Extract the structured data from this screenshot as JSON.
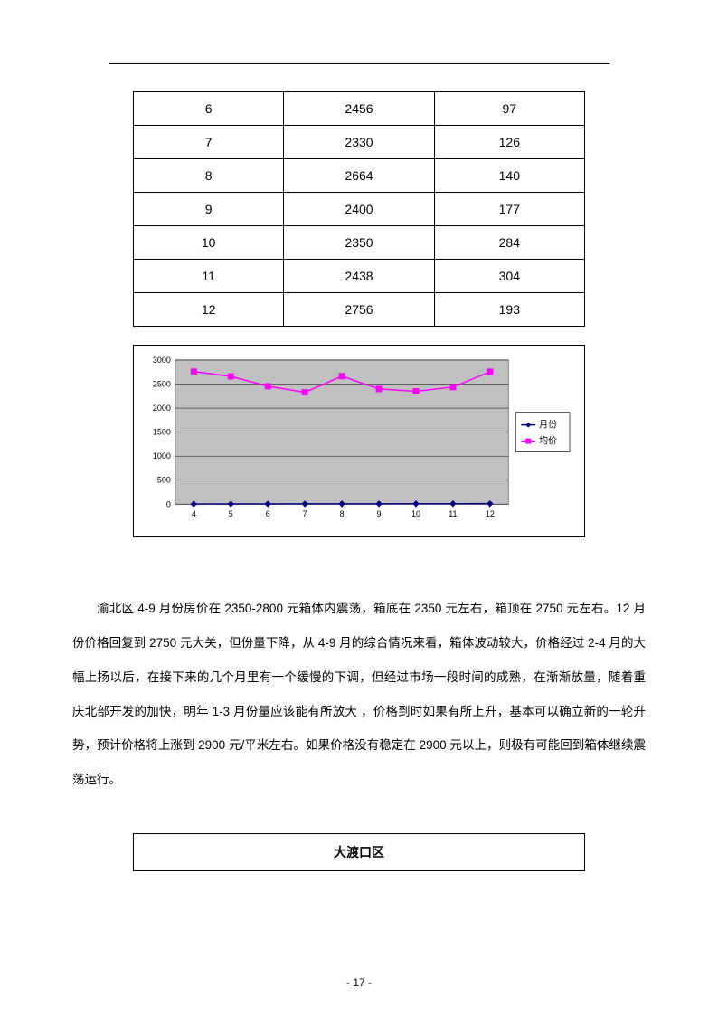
{
  "table": {
    "rows": [
      [
        "6",
        "2456",
        "97"
      ],
      [
        "7",
        "2330",
        "126"
      ],
      [
        "8",
        "2664",
        "140"
      ],
      [
        "9",
        "2400",
        "177"
      ],
      [
        "10",
        "2350",
        "284"
      ],
      [
        "11",
        "2438",
        "304"
      ],
      [
        "12",
        "2756",
        "193"
      ]
    ]
  },
  "chart": {
    "type": "line",
    "background_color": "#c0c0c0",
    "grid_color": "#000000",
    "plot_border_color": "#808080",
    "outer_border_color": "#000000",
    "x_categories": [
      "4",
      "5",
      "6",
      "7",
      "8",
      "9",
      "10",
      "11",
      "12"
    ],
    "y_ticks": [
      0,
      500,
      1000,
      1500,
      2000,
      2500,
      3000
    ],
    "ylim": [
      0,
      3000
    ],
    "axis_fontsize": 9,
    "legend_fontsize": 10,
    "series": [
      {
        "name": "月份",
        "color": "#000080",
        "marker": "diamond",
        "line_width": 1.5,
        "values": [
          4,
          5,
          6,
          7,
          8,
          9,
          10,
          11,
          12
        ]
      },
      {
        "name": "均价",
        "color": "#ff00ff",
        "marker": "square",
        "line_width": 1.5,
        "values": [
          2760,
          2660,
          2456,
          2330,
          2664,
          2400,
          2350,
          2438,
          2756
        ]
      }
    ]
  },
  "body_text": "渝北区 4-9 月份房价在 2350-2800 元箱体内震荡，箱底在 2350 元左右，箱顶在 2750 元左右。12 月份价格回复到 2750 元大关，但份量下降，从 4-9 月的综合情况来看，箱体波动较大，价格经过 2-4 月的大幅上扬以后，在接下来的几个月里有一个缓慢的下调，但经过市场一段时间的成熟，在渐渐放量，随着重庆北部开发的加快，明年 1-3 月份量应该能有所放大 ，价格到时如果有所上升，基本可以确立新的一轮升势，预计价格将上涨到 2900 元/平米左右。如果价格没有稳定在 2900 元以上，则极有可能回到箱体继续震荡运行。",
  "section_title": "大渡口区",
  "page_number": "- 17 -"
}
